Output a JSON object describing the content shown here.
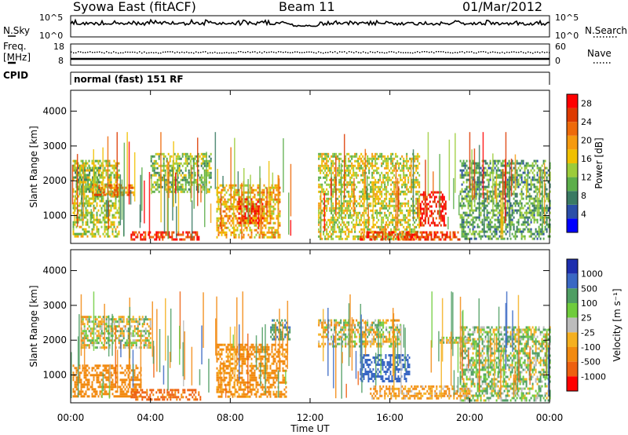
{
  "header": {
    "station": "Syowa East (fitACF)",
    "beam": "Beam 11",
    "date": "01/Mar/2012"
  },
  "strip_panels": {
    "nsky_label": "N.Sky",
    "nsky_ticks": [
      "10^5",
      "10^0"
    ],
    "nsearch_label": "N.Search",
    "nsearch_ticks": [
      "10^5",
      "10^0"
    ],
    "freq_label_line1": "Freq.",
    "freq_label_line2": "[MHz]",
    "freq_ticks": [
      "18",
      "8"
    ],
    "nave_label": "Nave",
    "nave_ticks": [
      "60",
      "0"
    ],
    "cpid_label": "CPID",
    "cpid_text": "normal (fast) 151 RF"
  },
  "colors": {
    "power": [
      "#0000ff",
      "#2a4ea8",
      "#3a7a63",
      "#5cae4a",
      "#9ccc3a",
      "#f0c000",
      "#f59a10",
      "#ee6a0a",
      "#dd3a00",
      "#ff0000"
    ],
    "velocity": [
      "#1e2fae",
      "#3a68c4",
      "#4f9e63",
      "#6fcc3c",
      "#bcbcbc",
      "#f5b020",
      "#f28a10",
      "#ee6010",
      "#ff0000"
    ]
  },
  "chart_data": [
    {
      "type": "heatmap",
      "name": "power",
      "xlabel": "",
      "ylabel": "Slant Range [km]",
      "xlim": [
        "00:00",
        "24:00"
      ],
      "ylim": [
        200,
        4600
      ],
      "y_ticks": [
        1000,
        2000,
        3000,
        4000
      ],
      "colorbar_label": "Power [dB]",
      "colorbar_ticks": [
        4,
        8,
        12,
        16,
        20,
        24,
        28
      ],
      "colorbar_range": [
        0,
        30
      ],
      "data_gap_hours": [
        11.1,
        12.4
      ],
      "regions": [
        {
          "t0": 0.1,
          "t1": 2.4,
          "r0": 400,
          "r1": 2600,
          "level": 14
        },
        {
          "t0": 0.2,
          "t1": 1.5,
          "r0": 1500,
          "r1": 2400,
          "level": 11
        },
        {
          "t0": 1.0,
          "t1": 3.2,
          "r0": 1600,
          "r1": 1900,
          "level": 22
        },
        {
          "t0": 3.0,
          "t1": 6.5,
          "r0": 300,
          "r1": 550,
          "level": 26
        },
        {
          "t0": 4.0,
          "t1": 7.0,
          "r0": 1700,
          "r1": 2800,
          "level": 12
        },
        {
          "t0": 7.3,
          "t1": 10.5,
          "r0": 400,
          "r1": 1900,
          "level": 18
        },
        {
          "t0": 8.4,
          "t1": 9.6,
          "r0": 800,
          "r1": 1500,
          "level": 27
        },
        {
          "t0": 12.4,
          "t1": 17.5,
          "r0": 300,
          "r1": 2800,
          "level": 15
        },
        {
          "t0": 14.5,
          "t1": 19.5,
          "r0": 300,
          "r1": 550,
          "level": 25
        },
        {
          "t0": 17.5,
          "t1": 18.8,
          "r0": 700,
          "r1": 1700,
          "level": 28
        },
        {
          "t0": 19.5,
          "t1": 24.0,
          "r0": 300,
          "r1": 2600,
          "level": 10
        }
      ]
    },
    {
      "type": "heatmap",
      "name": "velocity",
      "xlabel": "Time UT",
      "ylabel": "Slant Range [km]",
      "x_ticks": [
        "00:00",
        "04:00",
        "08:00",
        "12:00",
        "16:00",
        "20:00",
        "00:00"
      ],
      "ylim": [
        200,
        4600
      ],
      "y_ticks": [
        1000,
        2000,
        3000,
        4000
      ],
      "colorbar_label": "Velocity [m s⁻¹]",
      "colorbar_ticks": [
        "1000",
        "500",
        "100",
        "25",
        "-25",
        "-100",
        "-500",
        "-1000"
      ],
      "data_gap_hours": [
        11.1,
        12.4
      ],
      "regions": [
        {
          "t0": 0.1,
          "t1": 3.5,
          "r0": 400,
          "r1": 1300,
          "level": -300
        },
        {
          "t0": 0.5,
          "t1": 4.0,
          "r0": 1800,
          "r1": 2700,
          "level": 0
        },
        {
          "t0": 3.0,
          "t1": 6.5,
          "r0": 300,
          "r1": 600,
          "level": -600
        },
        {
          "t0": 7.3,
          "t1": 10.8,
          "r0": 400,
          "r1": 1900,
          "level": -200
        },
        {
          "t0": 10.0,
          "t1": 11.0,
          "r0": 2000,
          "r1": 2600,
          "level": 400
        },
        {
          "t0": 12.4,
          "t1": 16.5,
          "r0": 1800,
          "r1": 2600,
          "level": 0
        },
        {
          "t0": 14.5,
          "t1": 17.0,
          "r0": 800,
          "r1": 1600,
          "level": 800
        },
        {
          "t0": 15.0,
          "t1": 20.0,
          "r0": 300,
          "r1": 700,
          "level": -150
        },
        {
          "t0": 18.5,
          "t1": 20.0,
          "r0": 1900,
          "r1": 2100,
          "level": 0
        },
        {
          "t0": 19.5,
          "t1": 24.0,
          "r0": 300,
          "r1": 2400,
          "level": 50
        }
      ]
    }
  ]
}
